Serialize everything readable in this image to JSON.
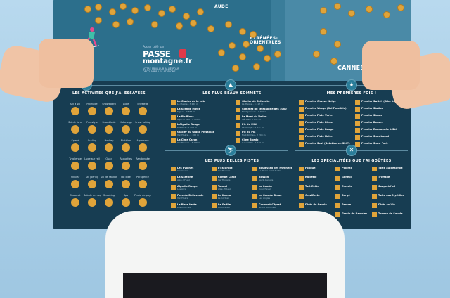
{
  "map": {
    "labels": {
      "aude": "AUDE",
      "pyrenees": "PYRÉNÉES-\nORIENTALES",
      "cannes": "CANNES"
    }
  },
  "logo": {
    "small": "Poster créé par",
    "main": "PASSE",
    "sub": "montagne.fr",
    "tagline": "VOTRE MEILLEUR ALLIÉ POUR DÉCOUVRIR LES STATIONS"
  },
  "sections": {
    "activites": "LES ACTIVITÉS QUE J'AI ESSAYÉES",
    "sommets": "LES PLUS BEAUX SOMMETS",
    "premieres": "MES PREMIÈRES FOIS !",
    "pistes": "LES PLUS BELLES PISTES",
    "specialites": "LES SPÉCIALITÉES QUE J'AI GOÛTÉES"
  },
  "activites": [
    "Ski à ski",
    "Patinage",
    "Snowboard",
    "Luge",
    "Télésiège",
    "Ski de fond",
    "Freestyle",
    "Snowblade",
    "Motoneige",
    "Snow tubing",
    "Speed",
    "Curling",
    "Hockey",
    "Biathlon",
    "Alpinisme",
    "Tyrolienne",
    "Luge sur rail",
    "Quad",
    "Raquettes",
    "Randonnée",
    "Ski-bar",
    "Ski Joëring",
    "Ski de randonnée",
    "Fat bike",
    "Parapente",
    "Snowcat",
    "Balade en raquettes",
    "Snooking",
    "Spa",
    "Photo de paysage"
  ],
  "sommets": [
    {
      "name": "Le Glacier de la Lutz",
      "sub": "La Plagne - 3 250 m"
    },
    {
      "name": "La Grande Motte",
      "sub": "Tignes - 3 656 m"
    },
    {
      "name": "Le Pic Blanc",
      "sub": "Alpe d'Huez - 3 330 m"
    },
    {
      "name": "L'Aiguille Rouge",
      "sub": "Les Arcs - 3 226 m"
    },
    {
      "name": "Glacier du Grand Pissaillas",
      "sub": "Val d'Isère - 3 300 m"
    },
    {
      "name": "La Cime Caron",
      "sub": "Val Thorens - 3 195 m"
    },
    {
      "name": "Glacier de Bellecote",
      "sub": "La Plagne - 3 417 m"
    },
    {
      "name": "Sommet du Télécabine des 3000",
      "sub": "Montgenèvre - 2 700 m"
    },
    {
      "name": "Le Mont du Vallon",
      "sub": "Méribel - 2 952 m"
    },
    {
      "name": "Pic du Midi",
      "sub": "La Mongie - 2 877 m"
    },
    {
      "name": "Pic du Pla",
      "sub": "Font-Romeu - 2 204 m"
    },
    {
      "name": "Cime Boedo",
      "sub": "Isola 2000 - 2 610 m"
    }
  ],
  "premieres": [
    "Premier Chasse-Neige",
    "Premier Virage (Ski Parallèle)",
    "Premier Piste Verte",
    "Premier Piste Bleue",
    "Premier Piste Rouge",
    "Premier Piste Noire",
    "Premier Saut (Sotation en Ski ?)",
    "Premier Switch (Aller à l'envers)",
    "Premier Station",
    "Premier Slalom",
    "Premier Bosses",
    "Premier Randonnée à Ski",
    "Premier Snowboard",
    "Premier Snow Park"
  ],
  "pistes": [
    {
      "name": "Les Pylônes",
      "sub": "Chamonix"
    },
    {
      "name": "La Sarenne",
      "sub": "Alpe d'Huez"
    },
    {
      "name": "Aiguille Rouge",
      "sub": "Les Arcs"
    },
    {
      "name": "Face de Bellevarde",
      "sub": "Val d'Isère"
    },
    {
      "name": "La Piste Verte",
      "sub": "Les Houches"
    },
    {
      "name": "La Mur Suisse",
      "sub": "Avoriaz"
    },
    {
      "name": "L'Escargot",
      "sub": "Val Thorens"
    },
    {
      "name": "Combe Caron",
      "sub": "Val Thorens"
    },
    {
      "name": "Tunnel",
      "sub": "Alpe d'Huez"
    },
    {
      "name": "Le Kalmo",
      "sub": "Le Corbier"
    },
    {
      "name": "La Sadile",
      "sub": "Courchevel"
    },
    {
      "name": "Le Lac Alphand",
      "sub": "Serre Chevalier"
    },
    {
      "name": "Boulevard des Pyrénées",
      "sub": "La Pierre Saint Martin"
    },
    {
      "name": "Bosson",
      "sub": "Saint-Gervais"
    },
    {
      "name": "La Combe",
      "sub": "Courchevel"
    },
    {
      "name": "Le Grande Bleue",
      "sub": "Les Angles"
    },
    {
      "name": "Courmet-Céyrat",
      "sub": "Grand Tourmalet"
    },
    {
      "name": "Bonnie",
      "sub": "Avoriaz"
    }
  ],
  "specialites": [
    "Fondue",
    "Raclette",
    "Tartiflette",
    "Croziflette",
    "Diots de Savoie",
    "Matafan",
    "Polenta",
    "Génépi",
    "Crozets",
    "Burgé",
    "Farçon",
    "Gratin de Ravioles",
    "Tarte au Beaufort",
    "Truffade",
    "Soupe à l'ail",
    "Tarte aux Myrtilles",
    "Diots au Vin",
    "Tomme de Savoie"
  ]
}
